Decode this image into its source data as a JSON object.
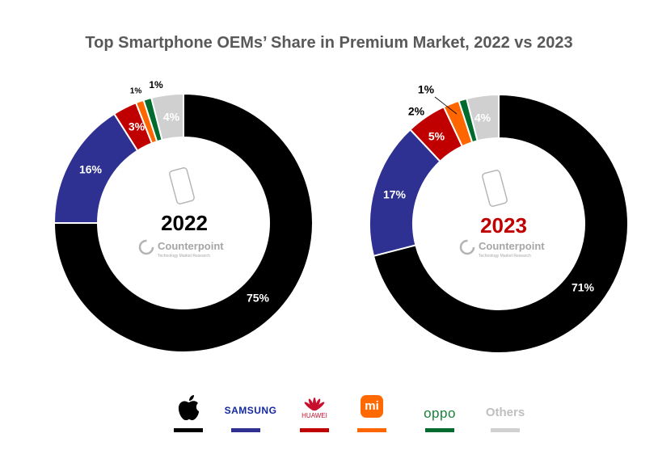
{
  "chart_data": {
    "type": "pie",
    "title": "Top Smartphone OEMs’ Share in Premium Market, 2022 vs 2023",
    "series_names": [
      "Apple",
      "Samsung",
      "Huawei",
      "Xiaomi",
      "OPPO",
      "Others"
    ],
    "colors": [
      "#000000",
      "#2E3192",
      "#C00000",
      "#FF6600",
      "#006B2D",
      "#D0D0D0"
    ],
    "charts": [
      {
        "year": "2022",
        "center_color": "#000000",
        "slices": [
          {
            "name": "Apple",
            "value": 75,
            "label": "75%"
          },
          {
            "name": "Samsung",
            "value": 16,
            "label": "16%"
          },
          {
            "name": "Huawei",
            "value": 3,
            "label": "3%"
          },
          {
            "name": "Xiaomi",
            "value": 1,
            "label": "1%"
          },
          {
            "name": "OPPO",
            "value": 1,
            "label": "1%"
          },
          {
            "name": "Others",
            "value": 4,
            "label": "4%"
          }
        ]
      },
      {
        "year": "2023",
        "center_color": "#C00000",
        "slices": [
          {
            "name": "Apple",
            "value": 71,
            "label": "71%"
          },
          {
            "name": "Samsung",
            "value": 17,
            "label": "17%"
          },
          {
            "name": "Huawei",
            "value": 5,
            "label": "5%"
          },
          {
            "name": "Xiaomi",
            "value": 2,
            "label": "2%"
          },
          {
            "name": "OPPO",
            "value": 1,
            "label": "1%"
          },
          {
            "name": "Others",
            "value": 4,
            "label": "4%"
          }
        ]
      }
    ],
    "watermark": {
      "brand": "Counterpoint",
      "tagline": "Technology Market Research"
    }
  },
  "legend": [
    {
      "name": "Apple",
      "text": "",
      "icon": "apple-logo-icon"
    },
    {
      "name": "Samsung",
      "text": "SAMSUNG",
      "icon": ""
    },
    {
      "name": "Huawei",
      "text": "HUAWEI",
      "icon": "huawei-logo-icon"
    },
    {
      "name": "Xiaomi",
      "text": "mi",
      "icon": "xiaomi-logo-icon"
    },
    {
      "name": "OPPO",
      "text": "oppo",
      "icon": ""
    },
    {
      "name": "Others",
      "text": "Others",
      "icon": ""
    }
  ]
}
